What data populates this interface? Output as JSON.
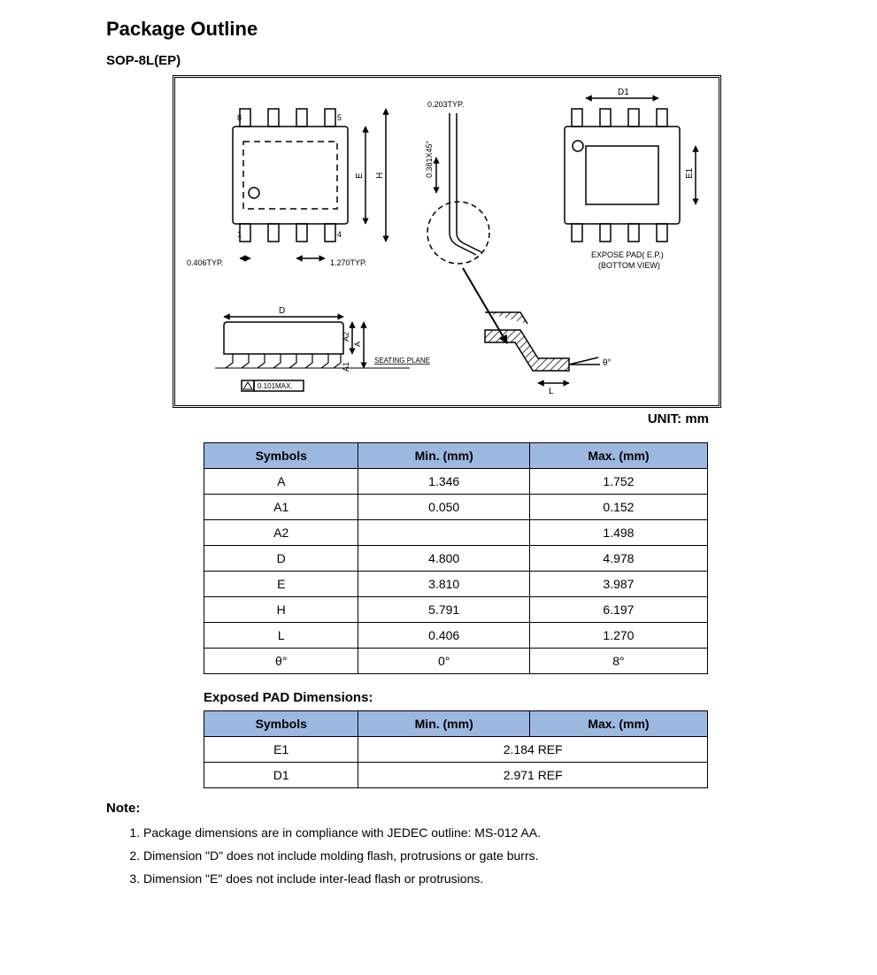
{
  "title": "Package Outline",
  "subtitle": "SOP-8L(EP)",
  "unit_label": "UNIT: mm",
  "drawing": {
    "labels": {
      "pin8": "8",
      "pin5": "5",
      "pin1": "1",
      "pin4": "4",
      "dim_0406": "0.406TYP.",
      "dim_1270": "1.270TYP.",
      "dim_E": "E",
      "dim_H": "H",
      "dim_0203": "0.203TYP.",
      "dim_0381": "0.381X45°",
      "dim_D1": "D1",
      "dim_E1": "E1",
      "expose_pad_l1": "EXPOSE PAD( E.P.)",
      "expose_pad_l2": "(BOTTOM VIEW)",
      "dim_D": "D",
      "dim_A": "A",
      "dim_A1": "A1",
      "dim_A2": "A2",
      "seating": "SEATING PLANE",
      "flat_0101": "0.101MAX.",
      "dim_L": "L",
      "theta": "θ°"
    }
  },
  "table1": {
    "headers": [
      "Symbols",
      "Min. (mm)",
      "Max. (mm)"
    ],
    "rows": [
      [
        "A",
        "1.346",
        "1.752"
      ],
      [
        "A1",
        "0.050",
        "0.152"
      ],
      [
        "A2",
        "",
        "1.498"
      ],
      [
        "D",
        "4.800",
        "4.978"
      ],
      [
        "E",
        "3.810",
        "3.987"
      ],
      [
        "H",
        "5.791",
        "6.197"
      ],
      [
        "L",
        "0.406",
        "1.270"
      ],
      [
        "θ°",
        "0°",
        "8°"
      ]
    ]
  },
  "exposed_heading": "Exposed PAD Dimensions:",
  "table2": {
    "headers": [
      "Symbols",
      "Min. (mm)",
      "Max. (mm)"
    ],
    "rows": [
      [
        "E1",
        {
          "colspan": 2,
          "value": "2.184 REF"
        }
      ],
      [
        "D1",
        {
          "colspan": 2,
          "value": "2.971 REF"
        }
      ]
    ]
  },
  "note_heading": "Note:",
  "notes": [
    "Package dimensions are in compliance with JEDEC outline: MS-012 AA.",
    "Dimension \"D\" does not include molding flash, protrusions or gate burrs.",
    "Dimension \"E\" does not include inter-lead flash or protrusions."
  ]
}
